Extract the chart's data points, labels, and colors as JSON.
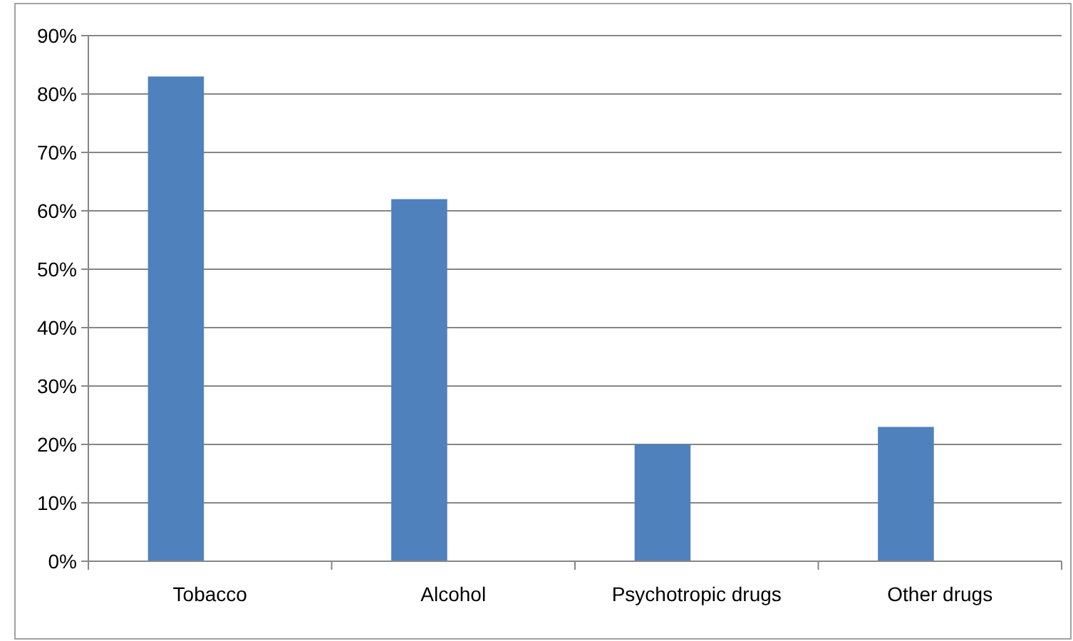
{
  "chart_data": {
    "type": "bar",
    "categories": [
      "Tobacco",
      "Alcohol",
      "Psychotropic drugs",
      "Other drugs"
    ],
    "values": [
      83,
      62,
      20,
      23
    ],
    "color": "#4f81bd",
    "ylim": [
      0,
      90
    ],
    "yticks": [
      {
        "value": 0,
        "label": "0%"
      },
      {
        "value": 10,
        "label": "10%"
      },
      {
        "value": 20,
        "label": "20%"
      },
      {
        "value": 30,
        "label": "30%"
      },
      {
        "value": 40,
        "label": "40%"
      },
      {
        "value": 50,
        "label": "50%"
      },
      {
        "value": 60,
        "label": "60%"
      },
      {
        "value": 70,
        "label": "70%"
      },
      {
        "value": 80,
        "label": "80%"
      },
      {
        "value": 90,
        "label": "90%"
      }
    ],
    "grid": "y"
  }
}
